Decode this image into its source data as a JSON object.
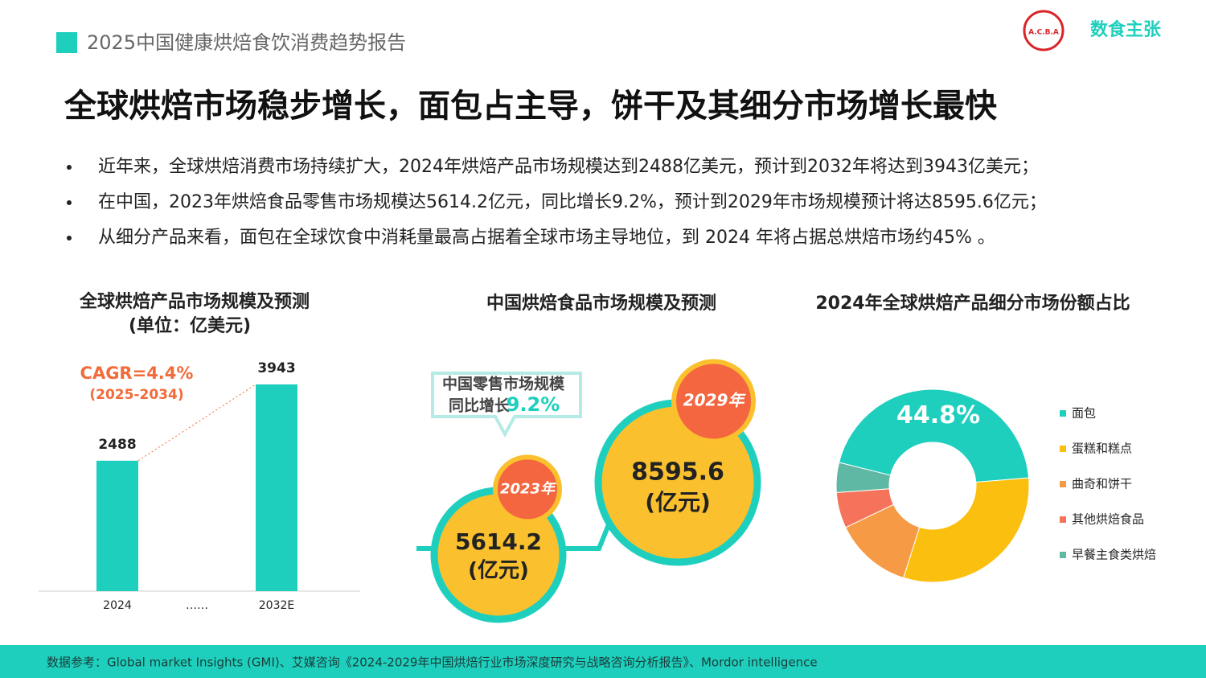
{
  "header": {
    "report_title": "2025中国健康烘焙食饮消费趋势报告",
    "logo_text": "数食主张",
    "logo_badge": "A.C.B.A"
  },
  "title": "全球烘焙市场稳步增长，面包占主导，饼干及其细分市场增长最快",
  "bullets": [
    "近年来，全球烘焙消费市场持续扩大，2024年烘焙产品市场规模达到2488亿美元，预计到2032年将达到3943亿美元；",
    "在中国，2023年烘焙食品零售市场规模达5614.2亿元，同比增长9.2%，预计到2029年市场规模预计将达8595.6亿元；",
    "从细分产品来看，面包在全球饮食中消耗量最高占据着全球市场主导地位，到 2024 年将占据总烘焙市场约45% 。"
  ],
  "chart_data": [
    {
      "type": "bar",
      "title": "全球烘焙产品市场规模及预测",
      "subtitle": "(单位：亿美元)",
      "categories": [
        "2024",
        "……",
        "2032E"
      ],
      "values": [
        2488,
        null,
        3943
      ],
      "color": "#1fcfbd",
      "annotations": [
        "CAGR=4.4%",
        "(2025-2034)"
      ]
    },
    {
      "type": "bubble",
      "title": "中国烘焙食品市场规模及预测",
      "categories": [
        "2023年",
        "2029年"
      ],
      "values": [
        5614.2,
        8595.6
      ],
      "unit": "(亿元)",
      "callout": {
        "line1": "中国零售市场规模",
        "line2": "同比增长",
        "highlight": "9.2%"
      }
    },
    {
      "type": "donut",
      "title": "2024年全球烘焙产品细分市场份额占比",
      "categories": [
        "面包",
        "蛋糕和糕点",
        "曲奇和饼干",
        "其他烘焙食品",
        "早餐主食类烘焙"
      ],
      "values": [
        44.8,
        31.2,
        13,
        6,
        5
      ],
      "value_labels": [
        "44.8%",
        null,
        null,
        null,
        null
      ],
      "colors": [
        "#1fcfbd",
        "#fbbf0f",
        "#f79a45",
        "#f5735a",
        "#5fb8a3"
      ],
      "legend": "right"
    }
  ],
  "footer": {
    "source": "数据参考：Global market Insights (GMI)、艾媒咨询《2024-2029年中国烘焙行业市场深度研究与战略咨询分析报告》、Mordor intelligence"
  }
}
